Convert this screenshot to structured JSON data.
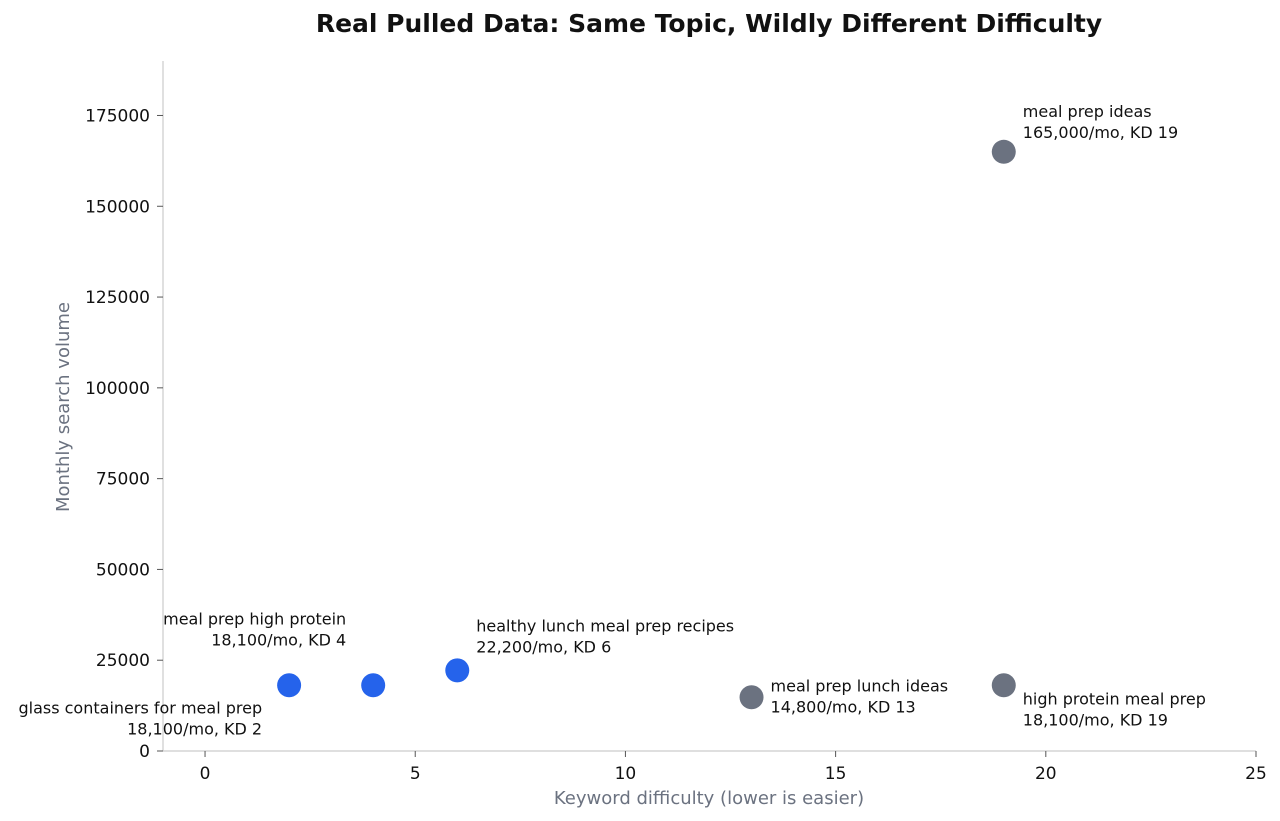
{
  "chart_data": {
    "type": "scatter",
    "title": "Real Pulled Data: Same Topic, Wildly Different Difficulty",
    "xlabel": "Keyword difficulty (lower is easier)",
    "ylabel": "Monthly search volume",
    "xlim": [
      -1,
      25
    ],
    "ylim": [
      0,
      190000
    ],
    "xticks": [
      "0",
      "5",
      "10",
      "15",
      "20",
      "25"
    ],
    "yticks": [
      "0",
      "25000",
      "50000",
      "75000",
      "100000",
      "125000",
      "150000",
      "175000"
    ],
    "grid": false,
    "colors": {
      "easy": "#2563eb",
      "hard": "#6b7280"
    },
    "points": [
      {
        "x": 2,
        "y": 18100,
        "group": "easy",
        "label_line1": "glass containers for meal prep",
        "label_line2": "18,100/mo, KD 2"
      },
      {
        "x": 4,
        "y": 18100,
        "group": "easy",
        "label_line1": "meal prep high protein",
        "label_line2": "18,100/mo, KD 4"
      },
      {
        "x": 6,
        "y": 22200,
        "group": "easy",
        "label_line1": "healthy lunch meal prep recipes",
        "label_line2": "22,200/mo, KD 6"
      },
      {
        "x": 13,
        "y": 14800,
        "group": "hard",
        "label_line1": "meal prep lunch ideas",
        "label_line2": "14,800/mo, KD 13"
      },
      {
        "x": 19,
        "y": 165000,
        "group": "hard",
        "label_line1": "meal prep ideas",
        "label_line2": "165,000/mo, KD 19"
      },
      {
        "x": 19,
        "y": 18100,
        "group": "hard",
        "label_line1": "high protein meal prep",
        "label_line2": "18,100/mo, KD 19"
      }
    ]
  }
}
